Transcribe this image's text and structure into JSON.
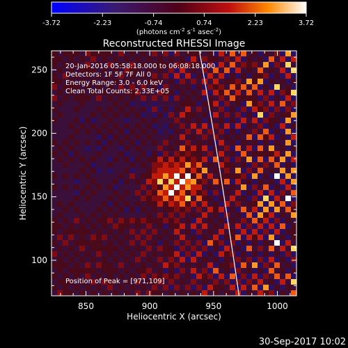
{
  "chart_data": {
    "type": "heatmap",
    "title": "Reconstructed RHESSI Image",
    "xlabel": "Heliocentric X (arcsec)",
    "ylabel": "Heliocentric Y (arcsec)",
    "xlim": [
      823,
      1015
    ],
    "ylim": [
      72,
      265
    ],
    "xticks": [
      850,
      900,
      950,
      1000
    ],
    "yticks": [
      100,
      150,
      200,
      250
    ],
    "colorbar": {
      "min": -3.72,
      "max": 3.72,
      "tick_labels": [
        "-3.72",
        "-2.23",
        "-0.74",
        "0.74",
        "2.23",
        "3.72"
      ],
      "unit_main": "(photons cm",
      "unit_exp1": "-2",
      "unit_mid": " s",
      "unit_exp2": "-1",
      "unit_mid2": " asec",
      "unit_exp3": "-2",
      "unit_end": ")"
    },
    "annotations": [
      "20-Jan-2016 05:58:18.000 to 06:08:18.000",
      "Detectors: 1F 5F 7F All 0",
      "Energy Range: 3.0 - 6.0 keV",
      "Clean    Total Counts: 2.33E+05"
    ],
    "peak_label": "Position of Peak = [971,109]",
    "peak": [
      971,
      109
    ],
    "limb_x_at_ylim": [
      942,
      970
    ]
  },
  "timestamp": "30-Sep-2017 10:02"
}
